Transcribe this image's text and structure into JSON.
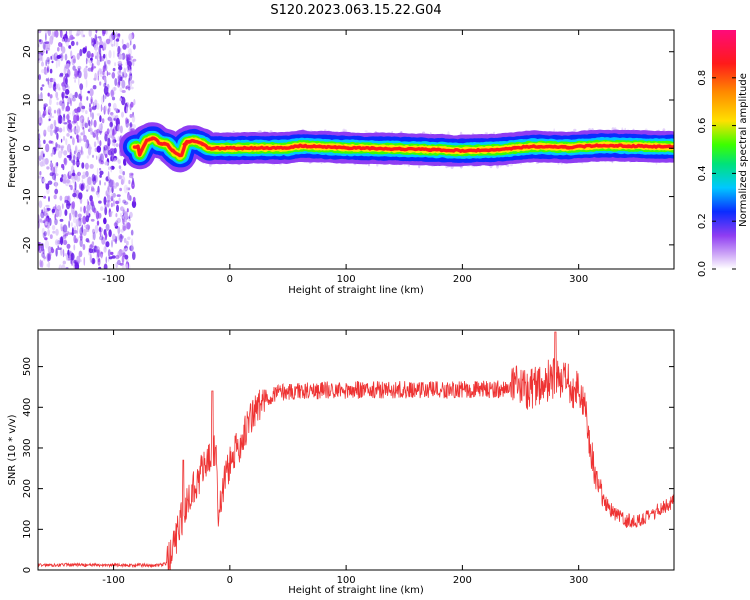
{
  "title": "S120.2023.063.15.22.G04",
  "chart_data": [
    {
      "type": "heatmap",
      "xlabel": "Height of straight line (km)",
      "ylabel": "Frequency (Hz)",
      "xlim": [
        -165,
        382
      ],
      "ylim": [
        -25,
        24.5
      ],
      "xticks": [
        -100,
        0,
        100,
        200,
        300
      ],
      "yticks": [
        -20,
        -10,
        0,
        10,
        20
      ],
      "grid": false,
      "noise_region_x": [
        -165,
        -82
      ],
      "signal_start_x": -82,
      "colorbar": {
        "label": "Normalized spectral amplitude",
        "range": [
          0.0,
          1.0
        ],
        "ticks": [
          0.0,
          0.2,
          0.4,
          0.6,
          0.8
        ],
        "colors": [
          "#ffffff",
          "#8f3df2",
          "#0a2cff",
          "#00c8ff",
          "#00e27a",
          "#3cff00",
          "#ffe000",
          "#ff8a00",
          "#ff1a1a",
          "#ff0a7a"
        ]
      },
      "ridge_frequency_hz": [
        {
          "x": -78,
          "y": -1.5
        },
        {
          "x": -72,
          "y": 1.5
        },
        {
          "x": -66,
          "y": 2.2
        },
        {
          "x": -60,
          "y": 1.0
        },
        {
          "x": -54,
          "y": 0.8
        },
        {
          "x": -48,
          "y": -0.8
        },
        {
          "x": -42,
          "y": -1.8
        },
        {
          "x": -38,
          "y": 1.2
        },
        {
          "x": -32,
          "y": 1.6
        },
        {
          "x": -24,
          "y": 1.0
        },
        {
          "x": -18,
          "y": 0.0
        },
        {
          "x": 0,
          "y": 0.0
        },
        {
          "x": 50,
          "y": 0.1
        },
        {
          "x": 60,
          "y": 0.5
        },
        {
          "x": 100,
          "y": 0.1
        },
        {
          "x": 160,
          "y": -0.2
        },
        {
          "x": 200,
          "y": -0.5
        },
        {
          "x": 230,
          "y": -0.3
        },
        {
          "x": 260,
          "y": 0.4
        },
        {
          "x": 290,
          "y": 0.2
        },
        {
          "x": 320,
          "y": 0.6
        },
        {
          "x": 382,
          "y": 0.3
        }
      ]
    },
    {
      "type": "line",
      "xlabel": "Height of straight line (km)",
      "ylabel": "SNR (10 * v/v)",
      "xlim": [
        -165,
        382
      ],
      "ylim": [
        0,
        590
      ],
      "xticks": [
        -100,
        0,
        100,
        200,
        300
      ],
      "yticks": [
        0,
        100,
        200,
        300,
        400,
        500
      ],
      "grid": false,
      "color": "#ee3333",
      "x": [
        -165,
        -140,
        -120,
        -100,
        -80,
        -60,
        -55,
        -50,
        -45,
        -40,
        -35,
        -30,
        -25,
        -20,
        -15,
        -12,
        -10,
        -5,
        0,
        10,
        20,
        30,
        40,
        60,
        80,
        100,
        120,
        140,
        160,
        180,
        200,
        220,
        240,
        260,
        270,
        280,
        290,
        300,
        305,
        310,
        315,
        320,
        330,
        340,
        350,
        360,
        370,
        382
      ],
      "y": [
        12,
        13,
        12,
        12,
        12,
        12,
        15,
        40,
        90,
        140,
        180,
        210,
        240,
        260,
        280,
        300,
        130,
        220,
        260,
        320,
        385,
        420,
        437,
        440,
        442,
        442,
        443,
        443,
        444,
        442,
        443,
        444,
        446,
        450,
        458,
        470,
        455,
        440,
        410,
        300,
        230,
        175,
        140,
        122,
        120,
        130,
        150,
        170
      ],
      "spikes": [
        {
          "x": -40,
          "y": 270
        },
        {
          "x": -15,
          "y": 440
        },
        {
          "x": 280,
          "y": 585
        }
      ]
    }
  ]
}
